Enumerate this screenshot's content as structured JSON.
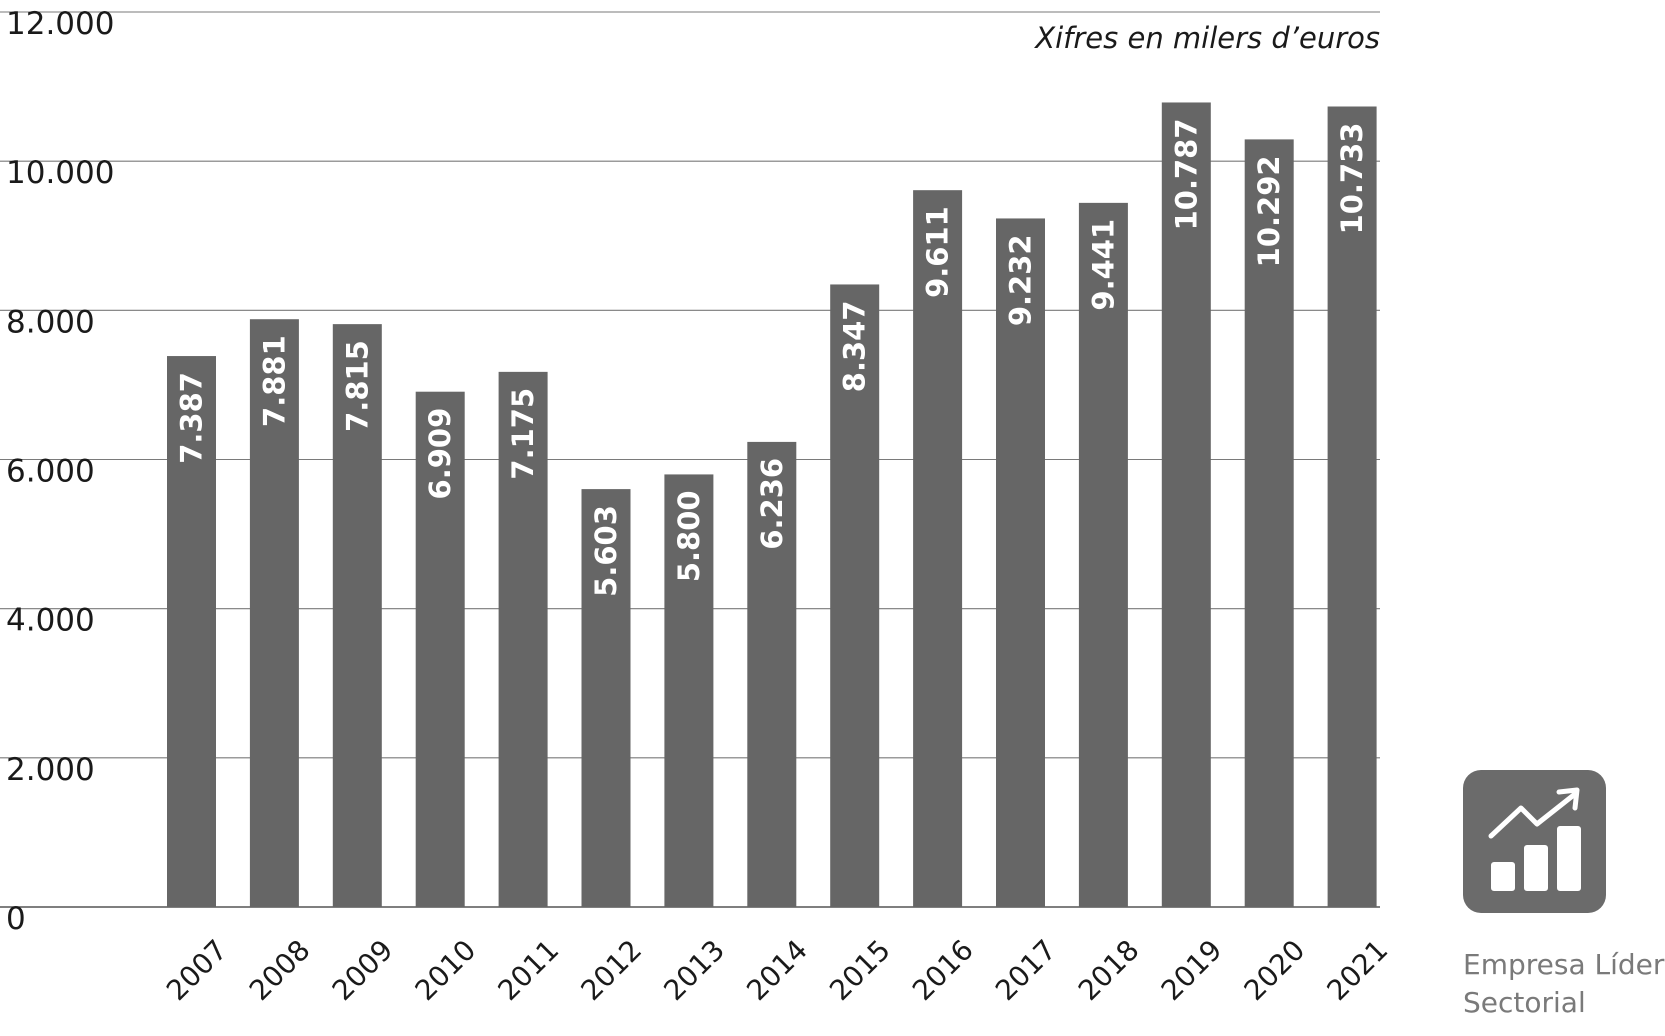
{
  "chart_data": {
    "type": "bar",
    "categories": [
      "2007",
      "2008",
      "2009",
      "2010",
      "2011",
      "2012",
      "2013",
      "2014",
      "2015",
      "2016",
      "2017",
      "2018",
      "2019",
      "2020",
      "2021"
    ],
    "values": [
      7387,
      7881,
      7815,
      6909,
      7175,
      5603,
      5800,
      6236,
      8347,
      9611,
      9232,
      9441,
      10787,
      10292,
      10733
    ],
    "data_labels": [
      "7.387",
      "7.881",
      "7.815",
      "6.909",
      "7.175",
      "5.603",
      "5.800",
      "6.236",
      "8.347",
      "9.611",
      "9.232",
      "9.441",
      "10.787",
      "10.292",
      "10.733"
    ],
    "yticks": [
      0,
      2000,
      4000,
      6000,
      8000,
      10000,
      12000
    ],
    "ytick_labels": [
      "0",
      "2.000",
      "4.000",
      "6.000",
      "8.000",
      "10.000",
      "12.000"
    ],
    "ylim": [
      0,
      12000
    ],
    "note": "Xifres en milers d’euros",
    "grid": true,
    "bar_color": "#666666"
  },
  "badge": {
    "icon": "growth-chart-icon",
    "line1": "Empresa Líder",
    "line2": "Sectorial",
    "color": "#6b6b6b"
  }
}
